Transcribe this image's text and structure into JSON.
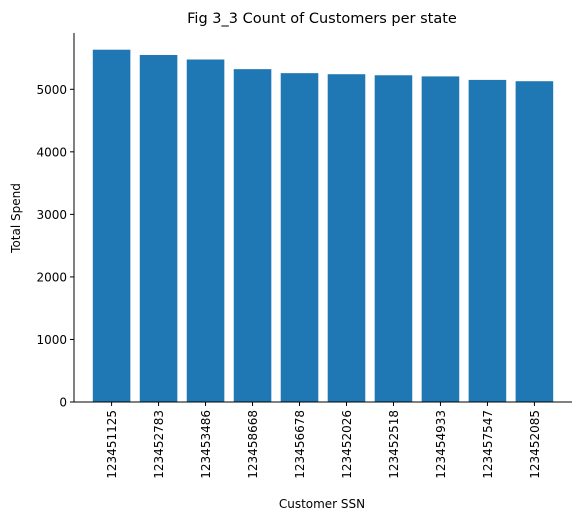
{
  "chart_data": {
    "type": "bar",
    "title": "Fig 3_3 Count of Customers per state",
    "xlabel": "Customer SSN",
    "ylabel": "Total Spend",
    "categories": [
      "123451125",
      "123452783",
      "123453486",
      "123458668",
      "123456678",
      "123452026",
      "123452518",
      "123454933",
      "123457547",
      "123452085"
    ],
    "values": [
      5633,
      5548,
      5476,
      5322,
      5258,
      5241,
      5224,
      5206,
      5150,
      5129
    ],
    "ylim": [
      0,
      5900
    ],
    "yticks": [
      0,
      1000,
      2000,
      3000,
      4000,
      5000
    ],
    "bar_color": "#1f77b4",
    "grid": false,
    "legend": "none"
  }
}
